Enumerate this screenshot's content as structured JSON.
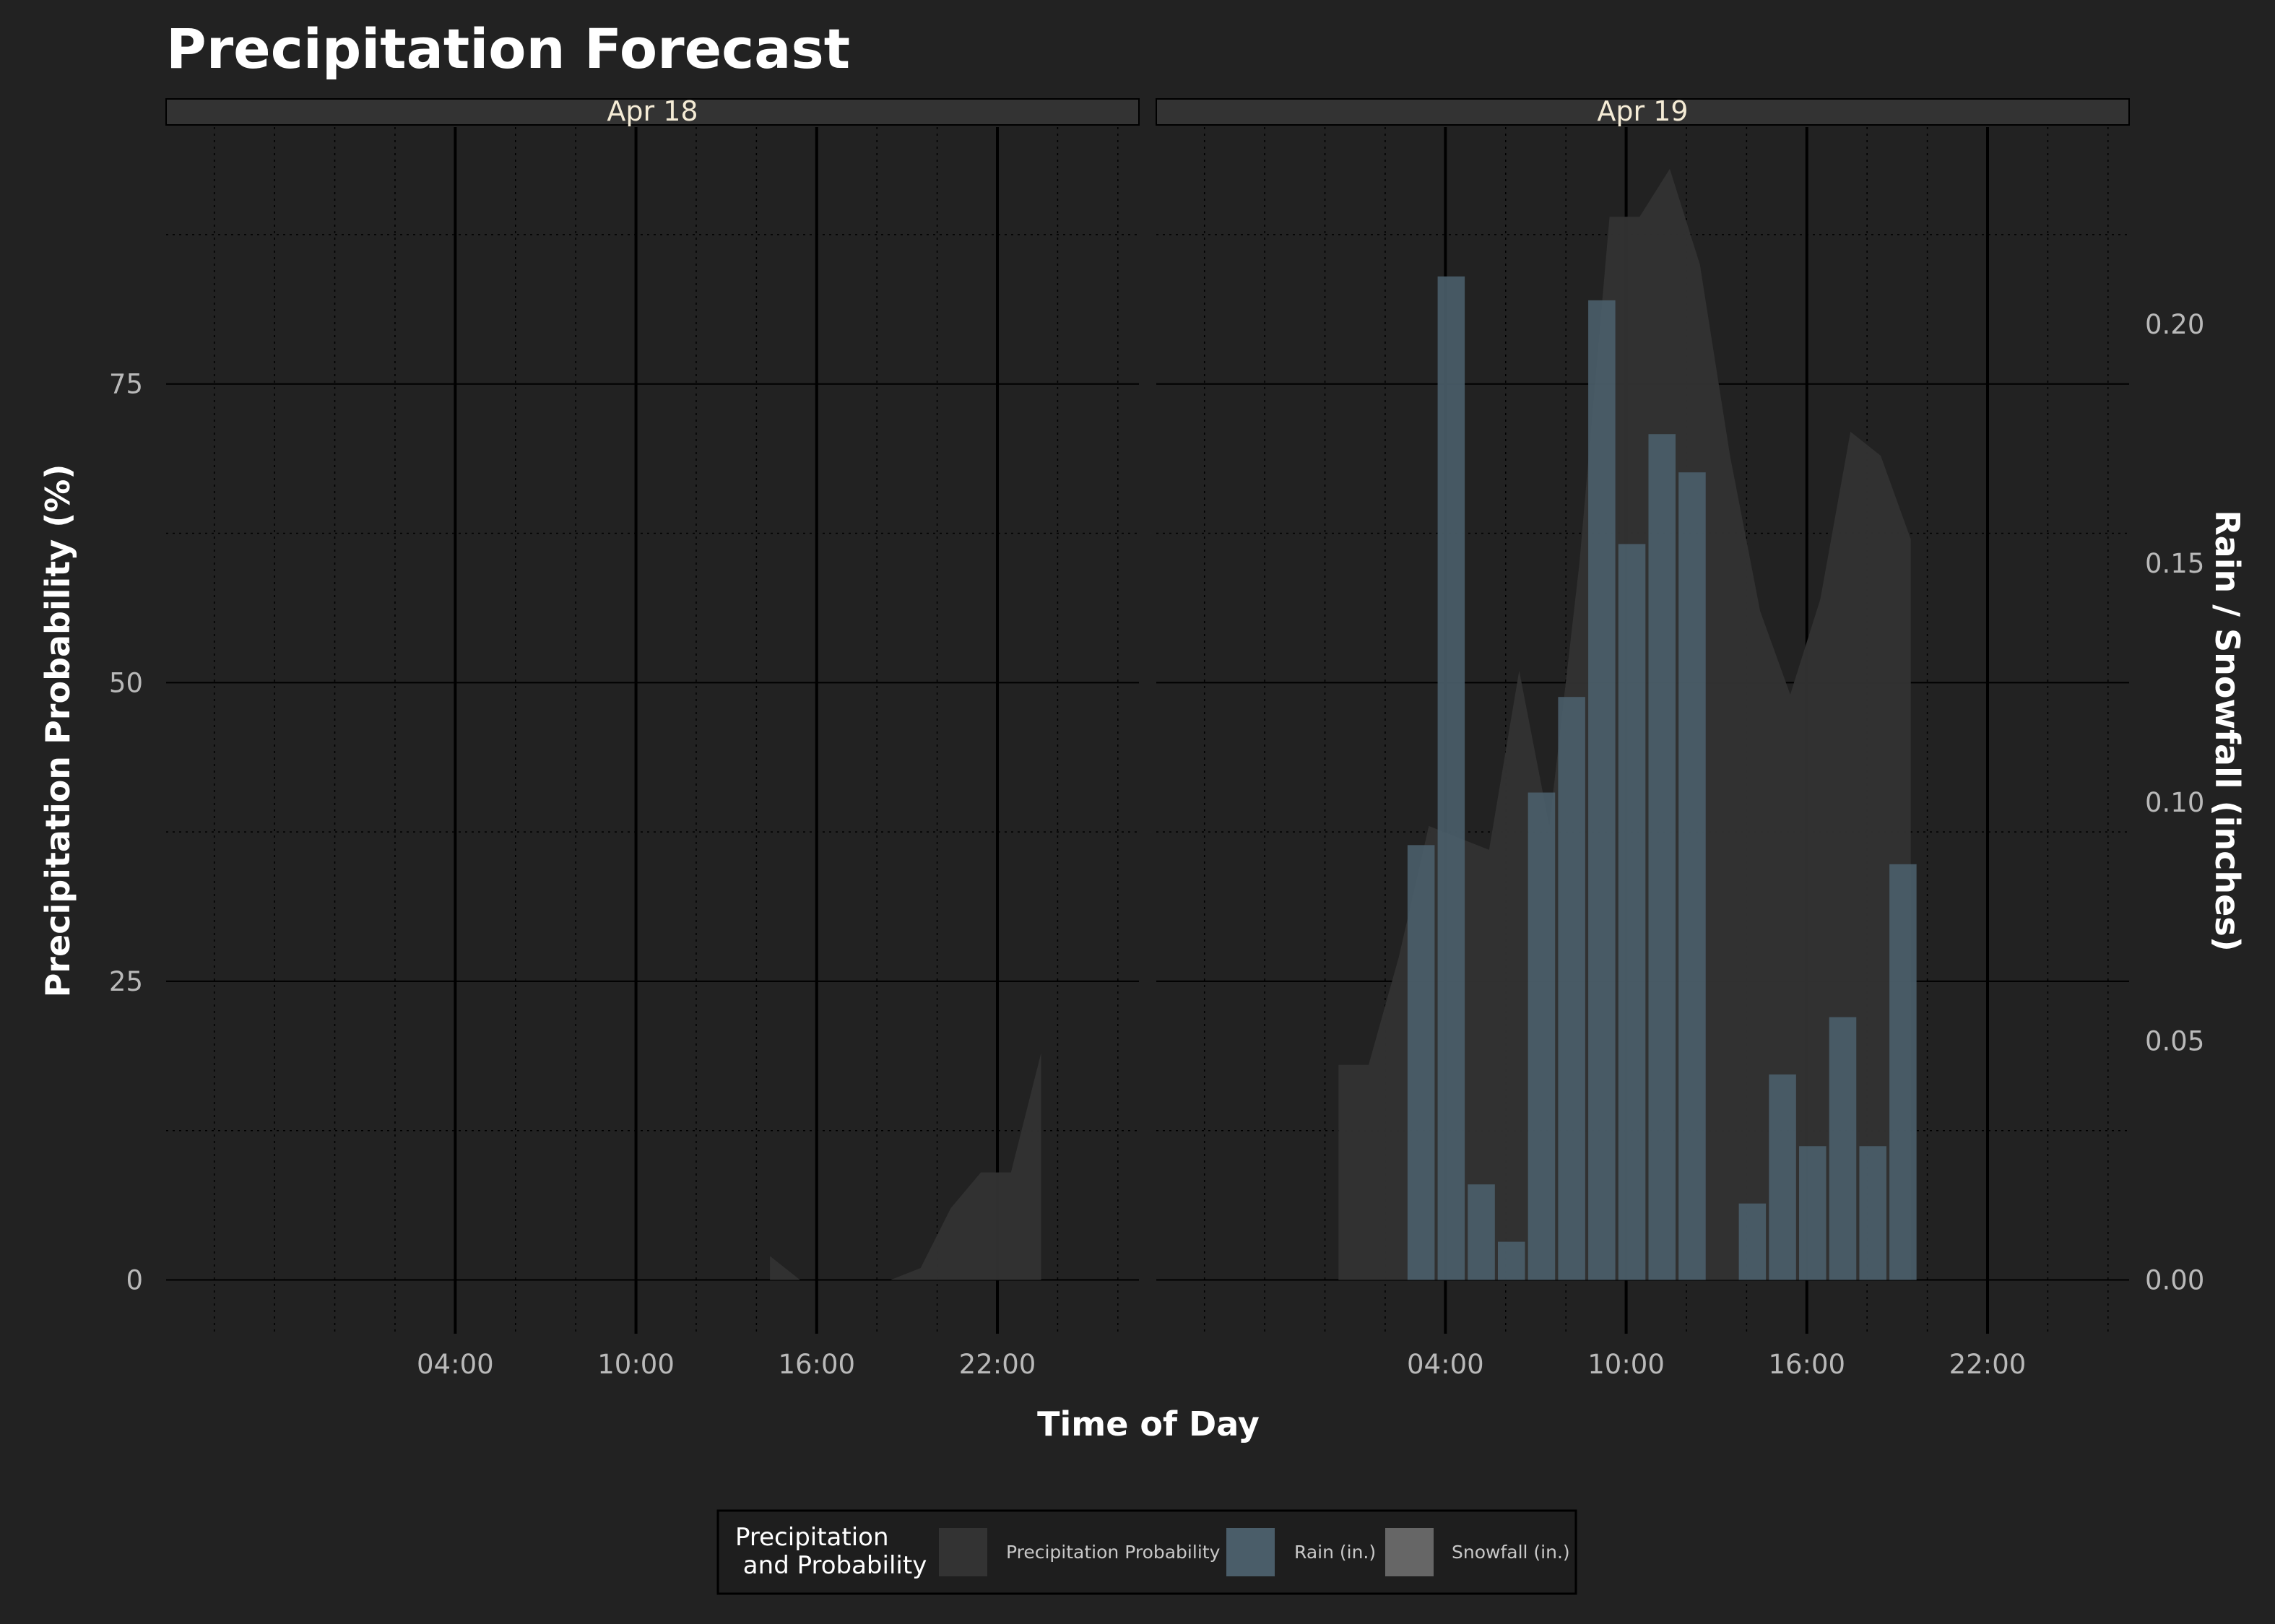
{
  "chart_data": {
    "type": "bar",
    "title": "Precipitation Forecast",
    "xlabel": "Time of Day",
    "ylabel": "Precipitation Probability (%)",
    "ylabel_right": "Rain / Snowfall (inches)",
    "x_ticks": [
      "04:00",
      "10:00",
      "16:00",
      "22:00"
    ],
    "x_tick_hours": [
      4,
      10,
      16,
      22
    ],
    "xlim_hours": [
      -5.6,
      26.7
    ],
    "y_ticks": [
      0,
      25,
      50,
      75
    ],
    "ylim": [
      -4.5,
      96.5
    ],
    "y2_ticks": [
      "0.00",
      "0.05",
      "0.10",
      "0.15",
      "0.20"
    ],
    "y2_tick_values": [
      0,
      0.05,
      0.1,
      0.15,
      0.2
    ],
    "y2_to_y_scale": 400,
    "grid": true,
    "legend_position": "bottom",
    "colors": {
      "background": "#222222",
      "strip_fill": "#333333",
      "probability": "#333333",
      "rain": "#4a5d69",
      "snowfall": "#666666",
      "major_grid": "#000000",
      "minor_grid": "#3a3a3a"
    },
    "legend": {
      "title_line1": "Precipitation",
      "title_line2": " and Probability",
      "items": [
        "Precipitation Probability",
        "Rain (in.)",
        "Snowfall (in.)"
      ]
    },
    "panels": [
      {
        "label": "Apr 18",
        "probability": {
          "hours": [
            14,
            15,
            16,
            17,
            18,
            19,
            20,
            21,
            22,
            23
          ],
          "values": [
            2,
            0,
            0,
            0,
            0,
            1,
            6,
            9,
            9,
            19
          ]
        },
        "rain": {
          "hours": [],
          "values": []
        },
        "snowfall": {
          "hours": [],
          "values": []
        }
      },
      {
        "label": "Apr 19",
        "probability": {
          "hours": [
            0,
            1,
            2,
            3,
            4,
            5,
            6,
            7,
            8,
            9,
            10,
            11,
            12,
            13,
            14,
            15,
            16,
            17,
            18,
            19
          ],
          "values": [
            18,
            18,
            27,
            38,
            37,
            36,
            51,
            38,
            60,
            89,
            89,
            93,
            85,
            69,
            56,
            49,
            57,
            71,
            69,
            62
          ]
        },
        "rain": {
          "hours": [
            3,
            4,
            5,
            6,
            7,
            8,
            9,
            10,
            11,
            12,
            14,
            15,
            16,
            17,
            18,
            19
          ],
          "values": [
            0.091,
            0.21,
            0.02,
            0.008,
            0.102,
            0.122,
            0.205,
            0.154,
            0.177,
            0.169,
            0.016,
            0.043,
            0.028,
            0.055,
            0.028,
            0.087
          ]
        },
        "snowfall": {
          "hours": [],
          "values": []
        }
      }
    ]
  }
}
